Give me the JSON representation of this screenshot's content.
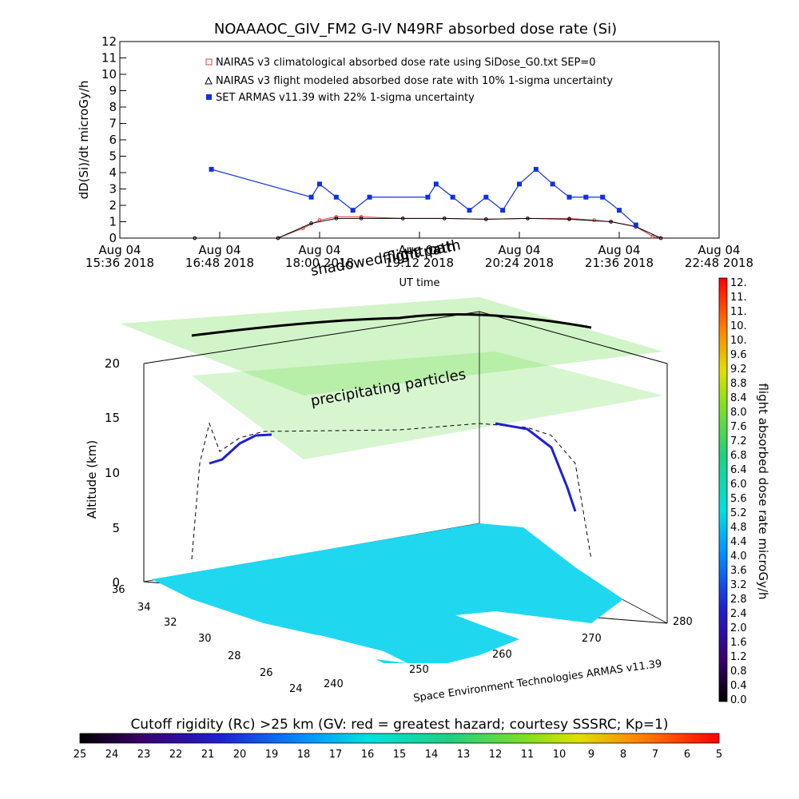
{
  "top_chart": {
    "title": "NOAAAOC_GIV_FM2 G-IV    N49RF   absorbed dose rate (Si)",
    "ylabel": "dD(Si)/dt microGy/h",
    "xlabel": "UT time",
    "legend": [
      {
        "label": "NAIRAS v3 climatological absorbed dose rate using SiDose_G0.txt SEP=0",
        "color": "#d94040",
        "symbol": "diamond"
      },
      {
        "label": "NAIRAS v3 flight modeled absorbed dose rate with 10% 1-sigma uncertainty",
        "color": "#000000",
        "symbol": "triangle"
      },
      {
        "label": "SET ARMAS v11.39 with 22% 1-sigma uncertainty",
        "color": "#1030e0",
        "symbol": "square"
      }
    ],
    "x_ticks": [
      {
        "d": "Aug 04",
        "t": "15:36 2018"
      },
      {
        "d": "Aug 04",
        "t": "16:48 2018"
      },
      {
        "d": "Aug 04",
        "t": "18:00 2018"
      },
      {
        "d": "Aug 04",
        "t": "19:12 2018"
      },
      {
        "d": "Aug 04",
        "t": "20:24 2018"
      },
      {
        "d": "Aug 04",
        "t": "21:36 2018"
      },
      {
        "d": "Aug 04",
        "t": "22:48 2018"
      }
    ],
    "y_ticks": [
      "0",
      "1",
      "2",
      "3",
      "4",
      "5",
      "6",
      "7",
      "8",
      "9",
      "10",
      "11",
      "12"
    ]
  },
  "chart_data": {
    "type": "line",
    "xlabel": "UT time",
    "ylabel": "dD(Si)/dt microGy/h",
    "ylim": [
      0,
      12
    ],
    "x_unit": "hours UT, Aug 04 2018",
    "xlim": [
      15.6,
      22.8
    ],
    "series": [
      {
        "name": "NAIRAS v3 climatological absorbed dose rate using SiDose_G0.txt SEP=0",
        "x": [
          16.5,
          17.5,
          17.8,
          18.0,
          18.2,
          18.5,
          19.0,
          19.5,
          20.0,
          20.5,
          21.0,
          21.3,
          21.5,
          21.8,
          22.0,
          22.1
        ],
        "y": [
          0,
          0,
          0.6,
          1.1,
          1.3,
          1.3,
          1.2,
          1.2,
          1.15,
          1.2,
          1.2,
          1.1,
          1.0,
          0.7,
          0.1,
          0
        ]
      },
      {
        "name": "NAIRAS v3 flight modeled absorbed dose rate with 10% 1-sigma uncertainty",
        "x": [
          16.5,
          17.5,
          17.9,
          18.2,
          18.5,
          19.0,
          19.5,
          20.0,
          20.5,
          21.0,
          21.5,
          21.8,
          22.1
        ],
        "y": [
          0,
          0,
          0.9,
          1.2,
          1.2,
          1.2,
          1.2,
          1.15,
          1.2,
          1.15,
          1.0,
          0.7,
          0
        ]
      },
      {
        "name": "SET ARMAS v11.39 with 22% 1-sigma uncertainty",
        "x": [
          16.7,
          17.9,
          18.0,
          18.2,
          18.4,
          18.6,
          19.3,
          19.4,
          19.6,
          19.8,
          20.0,
          20.2,
          20.4,
          20.6,
          20.8,
          21.0,
          21.2,
          21.4,
          21.6,
          21.8
        ],
        "y": [
          4.2,
          2.5,
          3.3,
          2.5,
          1.7,
          2.5,
          2.5,
          3.3,
          2.5,
          1.7,
          2.5,
          1.7,
          3.3,
          4.2,
          3.3,
          2.5,
          2.5,
          2.5,
          1.7,
          0.8
        ]
      }
    ]
  },
  "plot3d": {
    "annotations": [
      "shadowed flight path",
      "flight path",
      "precipitating particles"
    ],
    "zlabel": "Altitude (km)",
    "z_ticks": [
      "0",
      "5",
      "10",
      "15",
      "20"
    ],
    "lat_ticks": [
      "36",
      "34",
      "32",
      "30",
      "28",
      "26",
      "24"
    ],
    "lon_ticks": [
      "240",
      "250",
      "260",
      "270",
      "280"
    ],
    "credit": "Space Environment Technologies ARMAS v11.39"
  },
  "right_colorbar": {
    "label": "flight absorbed dose rate microGy/h",
    "ticks": [
      "12.",
      "11.",
      "11.",
      "10.",
      "10.",
      "9.6",
      "9.2",
      "8.8",
      "8.4",
      "8.0",
      "7.6",
      "7.2",
      "6.8",
      "6.4",
      "6.0",
      "5.6",
      "5.2",
      "4.8",
      "4.4",
      "4.0",
      "3.6",
      "3.2",
      "2.8",
      "2.4",
      "2.0",
      "1.6",
      "1.2",
      "0.8",
      "0.4",
      "0.0"
    ]
  },
  "bottom_colorbar": {
    "title": "Cutoff rigidity (Rc) >25 km (GV: red = greatest hazard; courtesy SSSRC; Kp=1)",
    "ticks": [
      "25",
      "24",
      "23",
      "22",
      "21",
      "20",
      "19",
      "18",
      "17",
      "16",
      "15",
      "14",
      "13",
      "12",
      "11",
      "10",
      "9",
      "8",
      "7",
      "6",
      "5"
    ]
  }
}
